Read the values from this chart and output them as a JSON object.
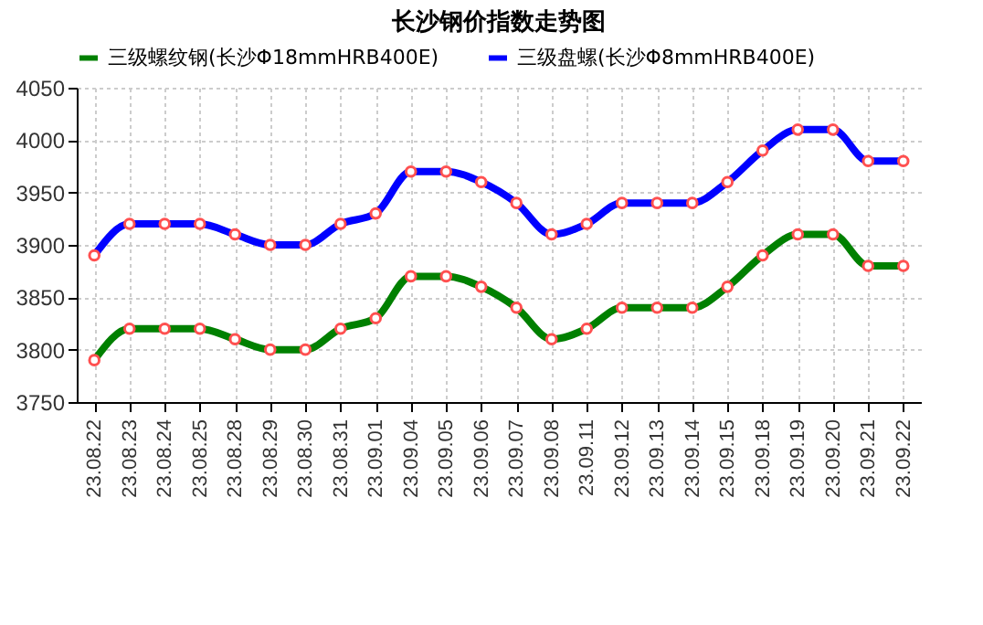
{
  "chart_data": {
    "type": "line",
    "title": "长沙钢价指数走势图",
    "categories": [
      "23.08.22",
      "23.08.23",
      "23.08.24",
      "23.08.25",
      "23.08.28",
      "23.08.29",
      "23.08.30",
      "23.08.31",
      "23.09.01",
      "23.09.04",
      "23.09.05",
      "23.09.06",
      "23.09.07",
      "23.09.08",
      "23.09.11",
      "23.09.12",
      "23.09.13",
      "23.09.14",
      "23.09.15",
      "23.09.18",
      "23.09.19",
      "23.09.20",
      "23.09.21",
      "23.09.22"
    ],
    "series": [
      {
        "name": "三级螺纹钢(长沙Φ18mmHRB400E)",
        "color": "#008000",
        "values": [
          3790,
          3820,
          3820,
          3820,
          3810,
          3800,
          3800,
          3820,
          3830,
          3870,
          3870,
          3860,
          3840,
          3810,
          3820,
          3840,
          3840,
          3840,
          3860,
          3890,
          3910,
          3910,
          3880,
          3880
        ]
      },
      {
        "name": "三级盘螺(长沙Φ8mmHRB400E)",
        "color": "#0000ff",
        "values": [
          3890,
          3920,
          3920,
          3920,
          3910,
          3900,
          3900,
          3920,
          3930,
          3970,
          3970,
          3960,
          3940,
          3910,
          3920,
          3940,
          3940,
          3940,
          3960,
          3990,
          4010,
          4010,
          3980,
          3980
        ]
      }
    ],
    "ylim": [
      3750,
      4050
    ],
    "yticks": [
      3750,
      3800,
      3850,
      3900,
      3950,
      4000,
      4050
    ],
    "grid": true,
    "legend": "top",
    "marker": "circle",
    "line_style": "solid"
  }
}
